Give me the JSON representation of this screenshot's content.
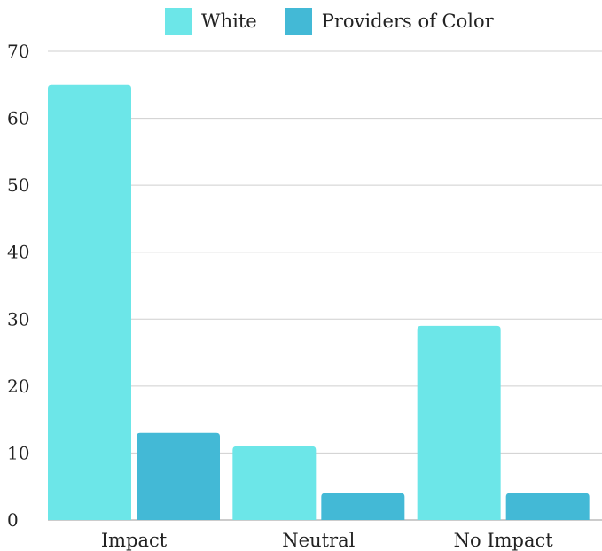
{
  "chart_data": {
    "type": "bar",
    "categories": [
      "Impact",
      "Neutral",
      "No Impact"
    ],
    "series": [
      {
        "name": "White",
        "values": [
          65,
          11,
          29
        ],
        "color": "#6ce6e8"
      },
      {
        "name": "Providers of Color",
        "values": [
          13,
          4,
          4
        ],
        "color": "#43b9d6"
      }
    ],
    "ylim": [
      0,
      70
    ],
    "yticks": [
      0,
      10,
      20,
      30,
      40,
      50,
      60,
      70
    ],
    "grid": true,
    "legend_position": "top"
  }
}
